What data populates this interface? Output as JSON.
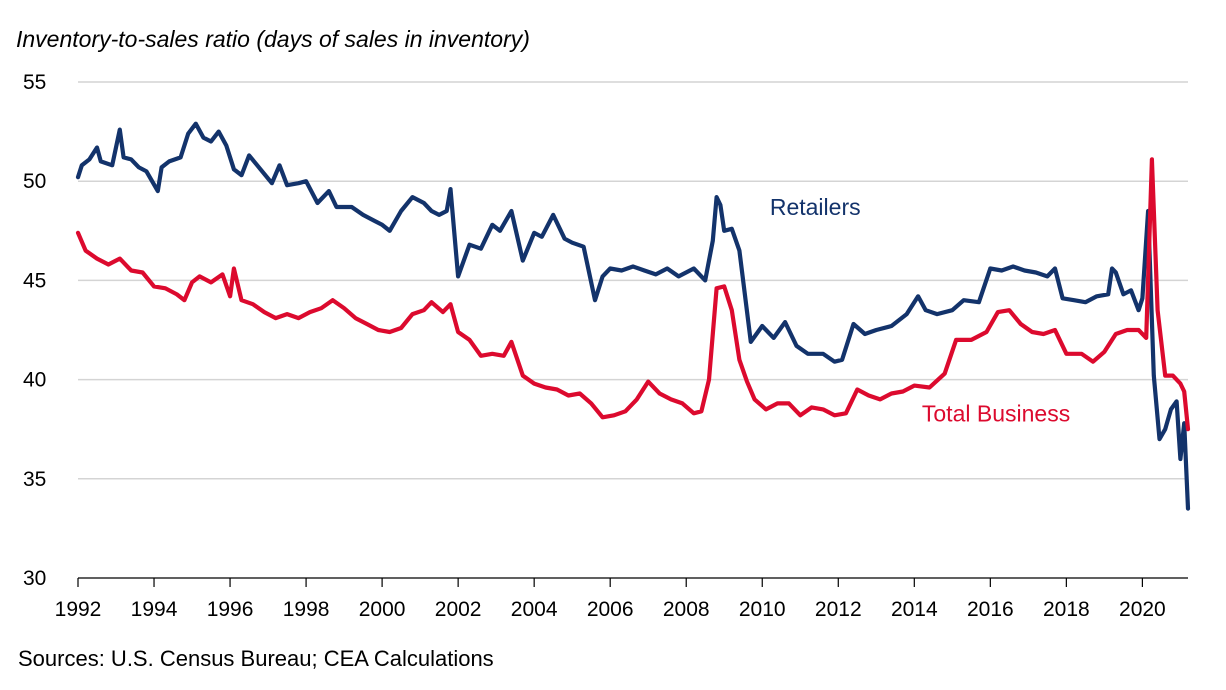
{
  "chart_data": {
    "type": "line",
    "ylabel": "Inventory-to-sales ratio (days of sales in inventory)",
    "source": "Sources: U.S. Census Bureau; CEA Calculations",
    "ylim": [
      30,
      55
    ],
    "xlim": [
      1992,
      2021.2
    ],
    "yticks": [
      "30",
      "35",
      "40",
      "45",
      "50",
      "55"
    ],
    "xticks": [
      "1992",
      "1994",
      "1996",
      "1998",
      "2000",
      "2002",
      "2004",
      "2006",
      "2008",
      "2010",
      "2012",
      "2014",
      "2016",
      "2018",
      "2020"
    ],
    "grid": true,
    "series": [
      {
        "name": "Retailers",
        "color": "#13336b",
        "x": [
          1992.0,
          1992.1,
          1992.3,
          1992.5,
          1992.6,
          1992.9,
          1993.1,
          1993.2,
          1993.4,
          1993.6,
          1993.8,
          1994.1,
          1994.2,
          1994.4,
          1994.7,
          1994.9,
          1995.1,
          1995.3,
          1995.5,
          1995.7,
          1995.9,
          1996.1,
          1996.3,
          1996.5,
          1996.8,
          1997.1,
          1997.3,
          1997.5,
          1997.8,
          1998.0,
          1998.3,
          1998.6,
          1998.8,
          1999.2,
          1999.5,
          1999.8,
          2000.0,
          2000.2,
          2000.5,
          2000.8,
          2001.1,
          2001.3,
          2001.5,
          2001.7,
          2001.8,
          2002.0,
          2002.3,
          2002.6,
          2002.9,
          2003.1,
          2003.4,
          2003.7,
          2004.0,
          2004.2,
          2004.5,
          2004.8,
          2005.0,
          2005.3,
          2005.6,
          2005.8,
          2006.0,
          2006.3,
          2006.6,
          2006.9,
          2007.2,
          2007.5,
          2007.8,
          2008.2,
          2008.5,
          2008.7,
          2008.8,
          2008.9,
          2009.0,
          2009.2,
          2009.4,
          2009.7,
          2010.0,
          2010.3,
          2010.6,
          2010.9,
          2011.2,
          2011.6,
          2011.9,
          2012.1,
          2012.4,
          2012.7,
          2013.0,
          2013.4,
          2013.8,
          2014.1,
          2014.3,
          2014.6,
          2015.0,
          2015.3,
          2015.7,
          2016.0,
          2016.3,
          2016.6,
          2016.9,
          2017.2,
          2017.5,
          2017.7,
          2017.9,
          2018.2,
          2018.5,
          2018.8,
          2019.1,
          2019.2,
          2019.3,
          2019.5,
          2019.7,
          2019.9,
          2020.0,
          2020.15,
          2020.3,
          2020.45,
          2020.6,
          2020.75,
          2020.9,
          2021.0,
          2021.1,
          2021.2
        ],
        "values": [
          50.2,
          50.8,
          51.1,
          51.7,
          51.0,
          50.8,
          52.6,
          51.2,
          51.1,
          50.7,
          50.5,
          49.5,
          50.7,
          51.0,
          51.2,
          52.4,
          52.9,
          52.2,
          52.0,
          52.5,
          51.8,
          50.6,
          50.3,
          51.3,
          50.6,
          49.9,
          50.8,
          49.8,
          49.9,
          50.0,
          48.9,
          49.5,
          48.7,
          48.7,
          48.3,
          48.0,
          47.8,
          47.5,
          48.5,
          49.2,
          48.9,
          48.5,
          48.3,
          48.5,
          49.6,
          45.2,
          46.8,
          46.6,
          47.8,
          47.5,
          48.5,
          46.0,
          47.4,
          47.2,
          48.3,
          47.1,
          46.9,
          46.7,
          44.0,
          45.2,
          45.6,
          45.5,
          45.7,
          45.5,
          45.3,
          45.6,
          45.2,
          45.6,
          45.0,
          47.0,
          49.2,
          48.8,
          47.5,
          47.6,
          46.5,
          41.9,
          42.7,
          42.1,
          42.9,
          41.7,
          41.3,
          41.3,
          40.9,
          41.0,
          42.8,
          42.3,
          42.5,
          42.7,
          43.3,
          44.2,
          43.5,
          43.3,
          43.5,
          44.0,
          43.9,
          45.6,
          45.5,
          45.7,
          45.5,
          45.4,
          45.2,
          45.6,
          44.1,
          44.0,
          43.9,
          44.2,
          44.3,
          45.6,
          45.4,
          44.3,
          44.5,
          43.5,
          44.1,
          48.5,
          40.2,
          37.0,
          37.5,
          38.5,
          38.9,
          36.0,
          37.8,
          33.5
        ]
      },
      {
        "name": "Total Business",
        "color": "#dc0a2e",
        "x": [
          1992.0,
          1992.2,
          1992.5,
          1992.8,
          1993.1,
          1993.4,
          1993.7,
          1994.0,
          1994.3,
          1994.6,
          1994.8,
          1995.0,
          1995.2,
          1995.5,
          1995.8,
          1996.0,
          1996.1,
          1996.3,
          1996.6,
          1996.9,
          1997.2,
          1997.5,
          1997.8,
          1998.1,
          1998.4,
          1998.7,
          1999.0,
          1999.3,
          1999.6,
          1999.9,
          2000.2,
          2000.5,
          2000.8,
          2001.1,
          2001.3,
          2001.6,
          2001.8,
          2002.0,
          2002.3,
          2002.6,
          2002.9,
          2003.2,
          2003.4,
          2003.7,
          2004.0,
          2004.3,
          2004.6,
          2004.9,
          2005.2,
          2005.5,
          2005.8,
          2006.1,
          2006.4,
          2006.7,
          2007.0,
          2007.3,
          2007.6,
          2007.9,
          2008.2,
          2008.4,
          2008.6,
          2008.8,
          2009.0,
          2009.2,
          2009.4,
          2009.6,
          2009.8,
          2010.1,
          2010.4,
          2010.7,
          2011.0,
          2011.3,
          2011.6,
          2011.9,
          2012.2,
          2012.5,
          2012.8,
          2013.1,
          2013.4,
          2013.7,
          2014.0,
          2014.4,
          2014.8,
          2015.1,
          2015.5,
          2015.9,
          2016.2,
          2016.5,
          2016.8,
          2017.1,
          2017.4,
          2017.7,
          2018.0,
          2018.4,
          2018.7,
          2019.0,
          2019.3,
          2019.6,
          2019.9,
          2020.1,
          2020.25,
          2020.4,
          2020.6,
          2020.8,
          2021.0,
          2021.1,
          2021.2
        ],
        "values": [
          47.4,
          46.5,
          46.1,
          45.8,
          46.1,
          45.5,
          45.4,
          44.7,
          44.6,
          44.3,
          44.0,
          44.9,
          45.2,
          44.9,
          45.3,
          44.2,
          45.6,
          44.0,
          43.8,
          43.4,
          43.1,
          43.3,
          43.1,
          43.4,
          43.6,
          44.0,
          43.6,
          43.1,
          42.8,
          42.5,
          42.4,
          42.6,
          43.3,
          43.5,
          43.9,
          43.4,
          43.8,
          42.4,
          42.0,
          41.2,
          41.3,
          41.2,
          41.9,
          40.2,
          39.8,
          39.6,
          39.5,
          39.2,
          39.3,
          38.8,
          38.1,
          38.2,
          38.4,
          39.0,
          39.9,
          39.3,
          39.0,
          38.8,
          38.3,
          38.4,
          40.0,
          44.6,
          44.7,
          43.5,
          41.0,
          39.9,
          39.0,
          38.5,
          38.8,
          38.8,
          38.2,
          38.6,
          38.5,
          38.2,
          38.3,
          39.5,
          39.2,
          39.0,
          39.3,
          39.4,
          39.7,
          39.6,
          40.3,
          42.0,
          42.0,
          42.4,
          43.4,
          43.5,
          42.8,
          42.4,
          42.3,
          42.5,
          41.3,
          41.3,
          40.9,
          41.4,
          42.3,
          42.5,
          42.5,
          42.1,
          51.1,
          43.5,
          40.2,
          40.2,
          39.8,
          39.4,
          37.5
        ]
      }
    ],
    "annotations": [
      {
        "text": "Retailers",
        "x": 2010.2,
        "y": 48.3,
        "color": "#13336b"
      },
      {
        "text": "Total Business",
        "x": 2014.2,
        "y": 37.9,
        "color": "#dc0a2e"
      }
    ]
  }
}
